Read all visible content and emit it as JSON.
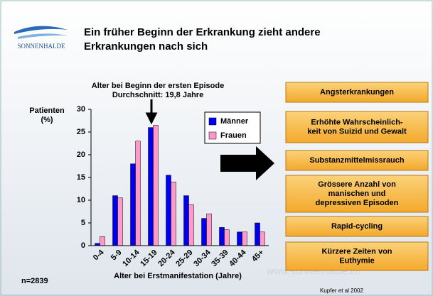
{
  "header": {
    "logo": "SONNENHALDE",
    "title": [
      "Ein früher Beginn der Erkrankung zieht andere",
      "Erkrankungen nach sich"
    ]
  },
  "chart_data": {
    "type": "bar",
    "annotation": [
      "Alter bei Beginn der ersten Episode",
      "Durchschnitt: 19,8 Jahre"
    ],
    "ylabel": [
      "Patienten",
      "(%)"
    ],
    "xlabel": "Alter bei Erstmanifestation (Jahre)",
    "categories": [
      "0-4",
      "5-9",
      "10-14",
      "15-19",
      "20-24",
      "25-29",
      "30-34",
      "35-39",
      "40-44",
      "45+"
    ],
    "series": [
      {
        "name": "Männer",
        "color": "#0000ee",
        "values": [
          0.5,
          11,
          18,
          26,
          15.5,
          11,
          6,
          4,
          3,
          5
        ]
      },
      {
        "name": "Frauen",
        "color": "#ff99cc",
        "values": [
          2,
          10.5,
          23,
          26.5,
          14,
          9,
          7,
          3.5,
          3,
          3
        ]
      }
    ],
    "ylim": [
      0,
      30
    ],
    "yticks": [
      0,
      5,
      10,
      15,
      20,
      25,
      30
    ],
    "legend": "upper right"
  },
  "sample": "n=2839",
  "consequences": [
    [
      "Angsterkrankungen"
    ],
    [
      "Erhöhte Wahrscheinlich-",
      "keit von Suizid und Gewalt"
    ],
    [
      "Substanzmittelmissrauch"
    ],
    [
      "Grössere Anzahl von",
      "manischen und",
      "depressiven Episoden"
    ],
    [
      "Rapid-cycling"
    ],
    [
      "Kürzere Zeiten von",
      "Euthymie"
    ]
  ],
  "watermark": "www.sonnenhalde.ch",
  "source": "Kupfer et al 2002"
}
